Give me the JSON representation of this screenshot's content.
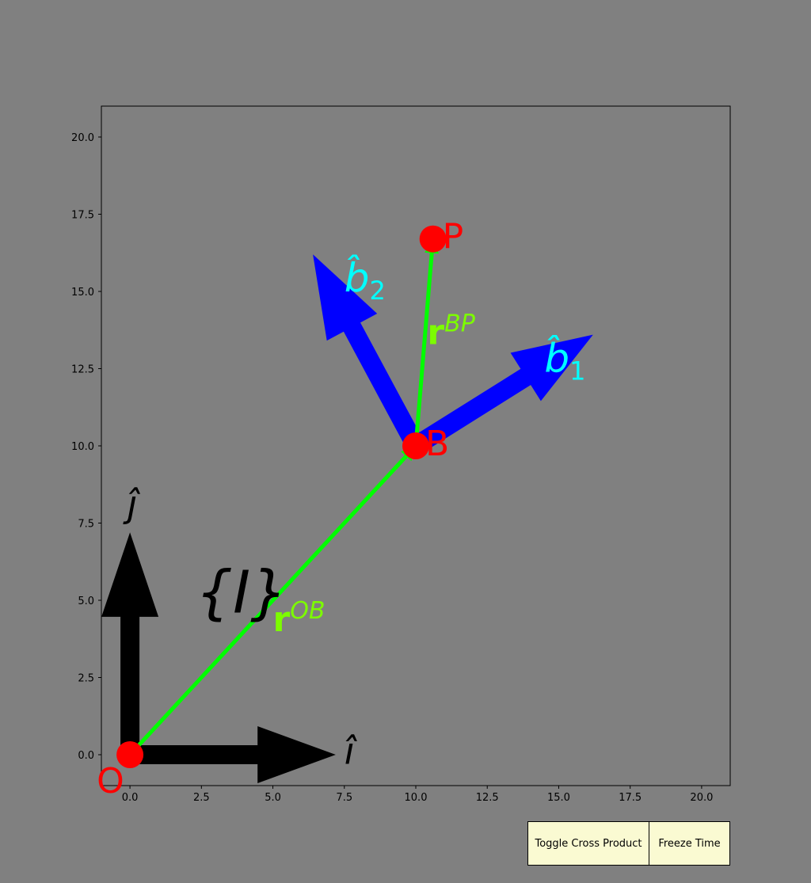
{
  "chart_data": {
    "type": "scatter",
    "xlim": [
      -1,
      21
    ],
    "ylim": [
      -1,
      21
    ],
    "xticks": [
      "0.0",
      "2.5",
      "5.0",
      "7.5",
      "10.0",
      "12.5",
      "15.0",
      "17.5",
      "20.0"
    ],
    "yticks": [
      "0.0",
      "2.5",
      "5.0",
      "7.5",
      "10.0",
      "12.5",
      "15.0",
      "17.5",
      "20.0"
    ],
    "xtick_values": [
      0,
      2.5,
      5,
      7.5,
      10,
      12.5,
      15,
      17.5,
      20
    ],
    "ytick_values": [
      0,
      2.5,
      5,
      7.5,
      10,
      12.5,
      15,
      17.5,
      20
    ],
    "grid": false,
    "frame_label": "{I}",
    "points": [
      {
        "label": "O",
        "x": 0,
        "y": 0
      },
      {
        "label": "B",
        "x": 10,
        "y": 10
      },
      {
        "label": "P",
        "x": 10.6,
        "y": 16.7
      }
    ],
    "arrows": [
      {
        "name": "i-hat",
        "label": "î",
        "from": [
          0,
          0
        ],
        "to": [
          7.2,
          0
        ],
        "color": "#000000",
        "style": "thick"
      },
      {
        "name": "j-hat",
        "label": "ĵ",
        "from": [
          0,
          0
        ],
        "to": [
          0,
          7.2
        ],
        "color": "#000000",
        "style": "thick"
      },
      {
        "name": "b1-hat",
        "label": "b̂₁",
        "from": [
          10,
          10
        ],
        "to": [
          16.2,
          13.6
        ],
        "color": "#0000ff",
        "style": "thick"
      },
      {
        "name": "b2-hat",
        "label": "b̂₂",
        "from": [
          10,
          10
        ],
        "to": [
          6.4,
          16.2
        ],
        "color": "#0000ff",
        "style": "thick"
      },
      {
        "name": "r-OB",
        "label": "rOB",
        "from": [
          0,
          0
        ],
        "to": [
          10,
          10
        ],
        "color": "#00ff00",
        "style": "thin"
      },
      {
        "name": "r-BP",
        "label": "rBP",
        "from": [
          10,
          10
        ],
        "to": [
          10.6,
          16.7
        ],
        "color": "#00ff00",
        "style": "thin"
      }
    ]
  },
  "colors": {
    "background": "#808080",
    "point": "#ff0000",
    "frame_vectors": "#000000",
    "body_vectors": "#0000ff",
    "body_labels": "#00ffff",
    "position_vectors": "#00ff00",
    "position_labels": "#7cfc00",
    "button_bg": "#fafad2"
  },
  "buttons": {
    "toggle_cross_product": "Toggle Cross Product",
    "freeze_time": "Freeze Time"
  }
}
